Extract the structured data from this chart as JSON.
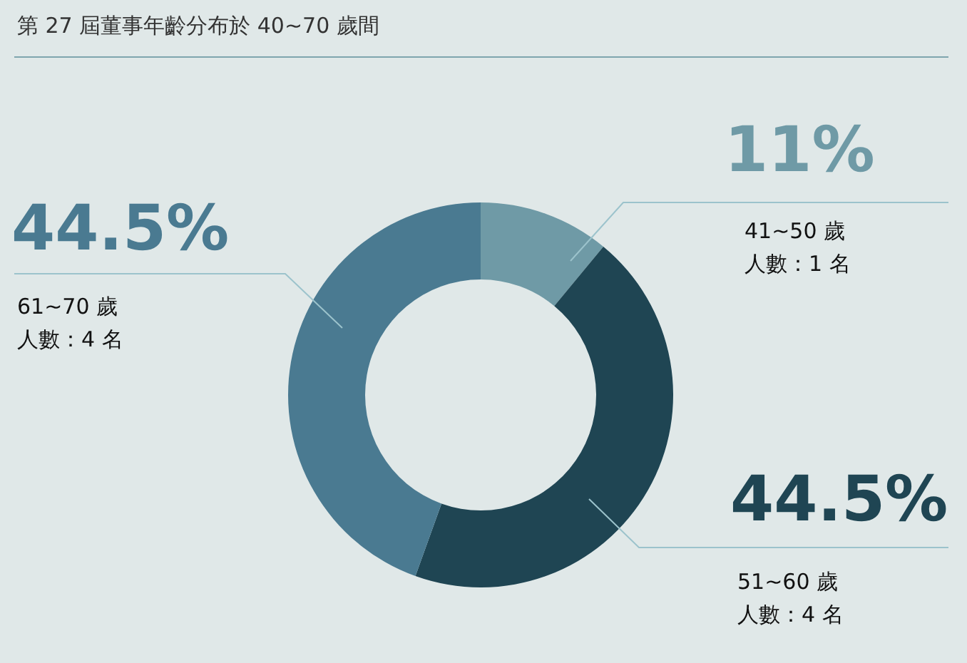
{
  "chart_data": {
    "type": "donut",
    "title": "第 27 屆董事年齡分布於 40~70 歲間",
    "categories": [
      "41~50 歲",
      "51~60 歲",
      "61~70 歲"
    ],
    "values": [
      11,
      44.5,
      44.5
    ],
    "colors": [
      "#6f9aa6",
      "#1f4553",
      "#4a7a91"
    ],
    "value_labels": [
      "11%",
      "44.5%",
      "44.5%"
    ],
    "annotations": [
      "人數：1 名",
      "人數：4 名",
      "人數：4 名"
    ],
    "legend": false
  }
}
